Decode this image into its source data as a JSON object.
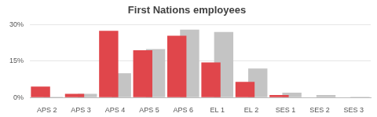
{
  "chart_data": {
    "type": "bar",
    "title": "First Nations employees",
    "categories": [
      "APS 2",
      "APS 3",
      "APS 4",
      "APS 5",
      "APS 6",
      "EL 1",
      "EL 2",
      "SES 1",
      "SES 2",
      "SES 3"
    ],
    "series": [
      {
        "color": "#e0464b",
        "values": [
          4.5,
          1.5,
          27.5,
          19.5,
          25.5,
          14.5,
          6.5,
          1,
          0,
          0
        ]
      },
      {
        "color": "#c4c4c4",
        "values": [
          0.3,
          1.5,
          10,
          20,
          28,
          27,
          12,
          2,
          1,
          0.3
        ]
      }
    ],
    "ylim": [
      0,
      30
    ],
    "yticks": [
      {
        "value": 0,
        "label": "0%"
      },
      {
        "value": 15,
        "label": "15%"
      },
      {
        "value": 30,
        "label": "30%"
      }
    ],
    "grid": true
  }
}
